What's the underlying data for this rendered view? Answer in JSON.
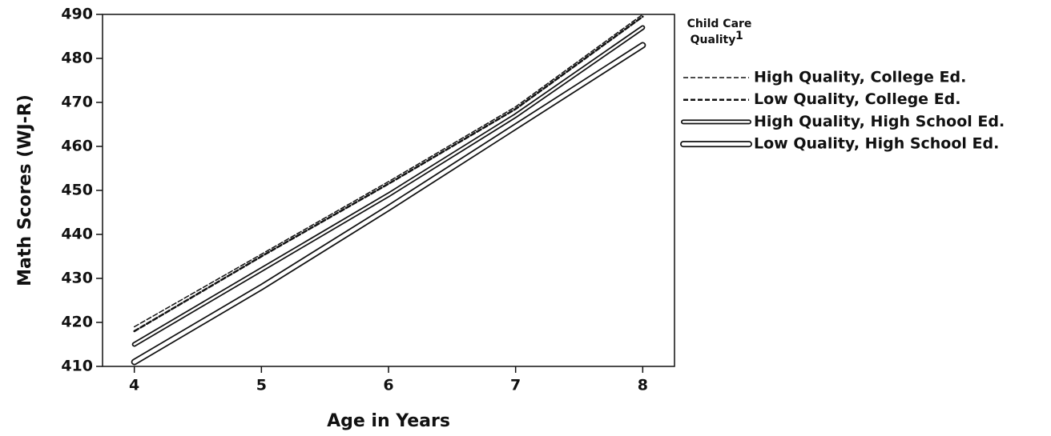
{
  "chart_data": {
    "type": "line",
    "xlabel": "Age in Years",
    "ylabel": "Math Scores (WJ-R)",
    "legend_title": [
      "Child Care",
      "Quality"
    ],
    "legend_title_note": "1",
    "legend": "right",
    "xlim": [
      3.75,
      8.25
    ],
    "xticks": [
      4,
      5,
      6,
      7,
      8
    ],
    "ylim": [
      410,
      490
    ],
    "yticks": [
      410,
      420,
      430,
      440,
      450,
      460,
      470,
      480,
      490
    ],
    "x": [
      4,
      5,
      6,
      7,
      8
    ],
    "series": [
      {
        "name": "High Quality, College Ed.",
        "color": "#111111",
        "dash": true,
        "double": false,
        "width": 1.5,
        "values": [
          419,
          435.5,
          452,
          469,
          490
        ]
      },
      {
        "name": "Low Quality, College Ed.",
        "color": "#111111",
        "dash": true,
        "double": false,
        "width": 2.5,
        "values": [
          418,
          435,
          451.5,
          468.5,
          489.5
        ]
      },
      {
        "name": "High Quality, High School Ed.",
        "color": "#111111",
        "dash": false,
        "double": true,
        "width": 1.5,
        "values": [
          415,
          432,
          449,
          467,
          487
        ]
      },
      {
        "name": "Low Quality, High School Ed.",
        "color": "#111111",
        "dash": false,
        "double": true,
        "width": 2.5,
        "values": [
          411,
          428,
          446,
          464.5,
          483
        ]
      }
    ]
  }
}
